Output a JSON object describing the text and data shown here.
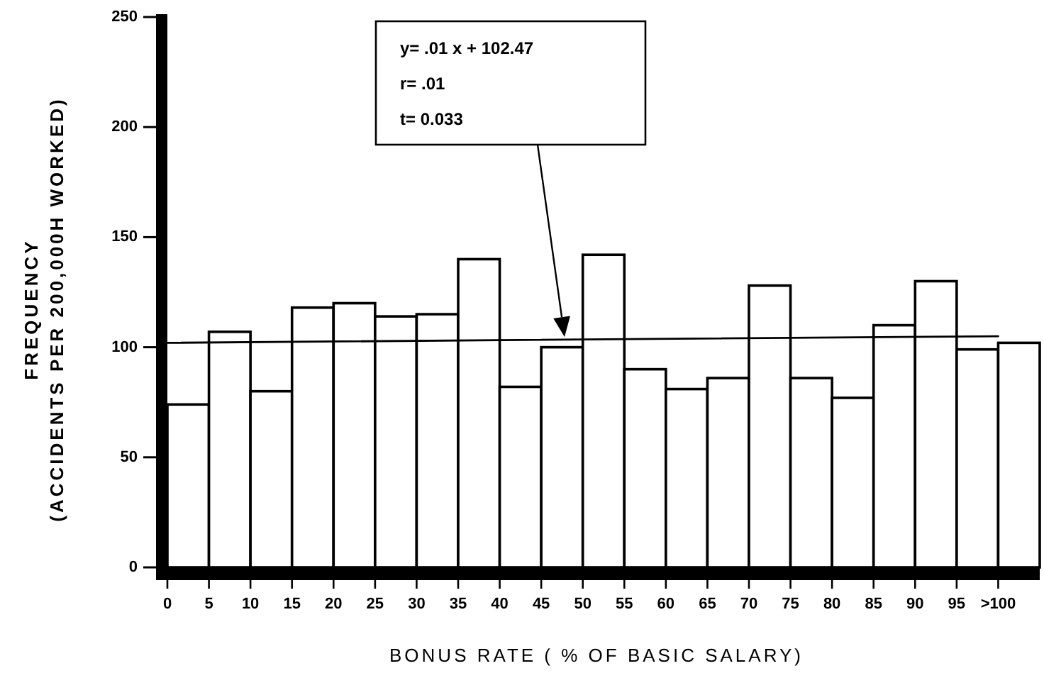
{
  "chart_data": {
    "type": "histogram",
    "xlabel": "BONUS RATE ( % OF BASIC SALARY)",
    "ylabel": "FREQUENCY\n(ACCIDENTS PER 200,000H WORKED)",
    "bins": [
      0,
      5,
      10,
      15,
      20,
      25,
      30,
      35,
      40,
      45,
      50,
      55,
      60,
      65,
      70,
      75,
      80,
      85,
      90,
      95,
      100,
      105
    ],
    "series": [
      {
        "values": [
          74,
          107,
          80,
          118,
          120,
          114,
          115,
          140,
          82,
          100,
          142,
          90,
          81,
          86,
          128,
          86,
          77,
          110,
          130,
          99,
          102
        ],
        "color": "#ffffff"
      },
      {
        "type": "line",
        "x": [
          0,
          100
        ],
        "values": [
          102,
          105
        ],
        "color": "#000000"
      }
    ],
    "xlim": [
      0,
      105
    ],
    "ylim": [
      0,
      250
    ],
    "xticks": [
      0,
      5,
      10,
      15,
      20,
      25,
      30,
      35,
      40,
      45,
      50,
      55,
      60,
      65,
      70,
      75,
      80,
      85,
      90,
      95,
      {
        "value": 100,
        "label": ">100"
      }
    ],
    "yticks": [
      0,
      50,
      100,
      150,
      200,
      250
    ],
    "annotations": [
      "y= .01 x + 102.47",
      "r= .01",
      "t= 0.033"
    ]
  }
}
